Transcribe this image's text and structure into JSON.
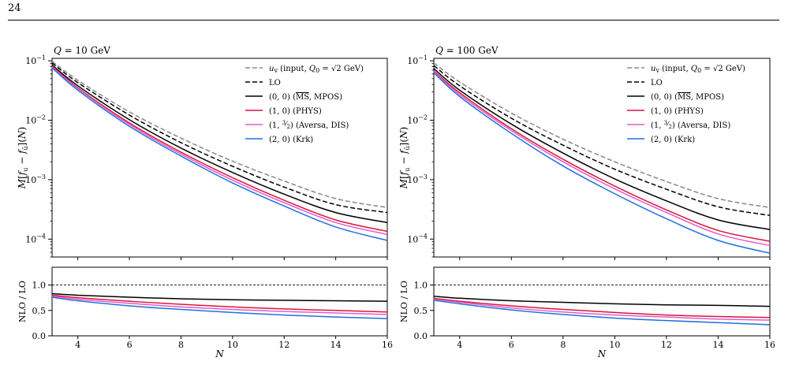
{
  "page": {
    "page_number": "24"
  },
  "legend_entries": [
    {
      "key": "uv",
      "label": "u_v (input, Q_0 = √2 GeV)",
      "color": "#888888",
      "dash": true
    },
    {
      "key": "LO",
      "label": "LO",
      "color": "#000000",
      "dash": true
    },
    {
      "key": "s00",
      "label": "(0, 0) (MS, MPOS)",
      "color": "#000000",
      "dash": false
    },
    {
      "key": "s10",
      "label": "(1, 0) (PHYS)",
      "color": "#dc143c",
      "dash": false
    },
    {
      "key": "s1h",
      "label": "(1, 3/2) (Aversa, DIS)",
      "color": "#e05ccc",
      "dash": false
    },
    {
      "key": "s20",
      "label": "(2, 0) (Krk)",
      "color": "#2070e0",
      "dash": false
    }
  ],
  "chart_data": [
    {
      "type": "line",
      "title": "Q = 10 GeV",
      "xlabel": "N",
      "ylabel": "M[f_u − f_ū](N)",
      "y_scale": "log",
      "xlim": [
        3,
        16
      ],
      "ylim": [
        5e-05,
        0.11
      ],
      "x": [
        3,
        4,
        6,
        8,
        10,
        12,
        14,
        16
      ],
      "x_ticks": [
        "4",
        "6",
        "8",
        "10",
        "12",
        "14",
        "16"
      ],
      "y_ticks": [
        "10^-1",
        "10^-2",
        "10^-3",
        "10^-4"
      ],
      "series": [
        {
          "name": "u_v (input, Q_0 = √2 GeV)",
          "values": [
            0.098,
            0.047,
            0.0138,
            0.005,
            0.00205,
            0.00095,
            0.00048,
            0.00034
          ]
        },
        {
          "name": "LO",
          "values": [
            0.092,
            0.043,
            0.0122,
            0.0042,
            0.00168,
            0.00075,
            0.00038,
            0.00028
          ]
        },
        {
          "name": "(0, 0) (MS, MPOS)",
          "values": [
            0.085,
            0.038,
            0.0102,
            0.0034,
            0.00132,
            0.00057,
            0.00028,
            0.00019
          ]
        },
        {
          "name": "(1, 0) (PHYS)",
          "values": [
            0.082,
            0.035,
            0.009,
            0.0029,
            0.00108,
            0.00045,
            0.00021,
            0.000135
          ]
        },
        {
          "name": "(1, 3/2) (Aversa, DIS)",
          "values": [
            0.079,
            0.034,
            0.0085,
            0.0027,
            0.00098,
            0.00041,
            0.00019,
            0.00012
          ]
        },
        {
          "name": "(2, 0) (Krk)",
          "values": [
            0.076,
            0.032,
            0.0079,
            0.0025,
            0.00088,
            0.00036,
            0.00016,
            9.5e-05
          ]
        }
      ],
      "ratio_panel": {
        "ylabel": "NLO / LO",
        "ylim": [
          0.0,
          1.35
        ],
        "y_ticks": [
          "0.0",
          "0.5",
          "1.0"
        ],
        "reference_line": 1.0,
        "x": [
          3,
          4,
          6,
          8,
          10,
          12,
          14,
          16
        ],
        "series": [
          {
            "name": "(0, 0) (MS, MPOS)",
            "values": [
              0.83,
              0.8,
              0.76,
              0.73,
              0.71,
              0.7,
              0.69,
              0.68
            ]
          },
          {
            "name": "(1, 0) (PHYS)",
            "values": [
              0.8,
              0.75,
              0.68,
              0.62,
              0.57,
              0.53,
              0.5,
              0.47
            ]
          },
          {
            "name": "(1, 3/2) (Aversa, DIS)",
            "values": [
              0.78,
              0.72,
              0.64,
              0.57,
              0.52,
              0.48,
              0.45,
              0.42
            ]
          },
          {
            "name": "(2, 0) (Krk)",
            "values": [
              0.76,
              0.69,
              0.59,
              0.52,
              0.46,
              0.41,
              0.37,
              0.34
            ]
          }
        ]
      }
    },
    {
      "type": "line",
      "title": "Q = 100 GeV",
      "xlabel": "N",
      "ylabel": "M[f_u − f_ū](N)",
      "y_scale": "log",
      "xlim": [
        3,
        16
      ],
      "ylim": [
        5e-05,
        0.11
      ],
      "x": [
        3,
        4,
        6,
        8,
        10,
        12,
        14,
        16
      ],
      "x_ticks": [
        "4",
        "6",
        "8",
        "10",
        "12",
        "14",
        "16"
      ],
      "y_ticks": [
        "10^-1",
        "10^-2",
        "10^-3",
        "10^-4"
      ],
      "series": [
        {
          "name": "u_v (input, Q_0 = √2 GeV)",
          "values": [
            0.092,
            0.044,
            0.0132,
            0.0048,
            0.002,
            0.00093,
            0.00048,
            0.00034
          ]
        },
        {
          "name": "LO",
          "values": [
            0.083,
            0.038,
            0.0108,
            0.0038,
            0.0015,
            0.00069,
            0.00035,
            0.00025
          ]
        },
        {
          "name": "(0, 0) (MS, MPOS)",
          "values": [
            0.074,
            0.032,
            0.0086,
            0.0028,
            0.00103,
            0.00044,
            0.00021,
            0.000145
          ]
        },
        {
          "name": "(1, 0) (PHYS)",
          "values": [
            0.068,
            0.029,
            0.0072,
            0.0022,
            0.00078,
            0.00031,
            0.00014,
            9.2e-05
          ]
        },
        {
          "name": "(1, 3/2) (Aversa, DIS)",
          "values": [
            0.066,
            0.027,
            0.0067,
            0.002,
            0.0007,
            0.00028,
            0.000122,
            7.8e-05
          ]
        },
        {
          "name": "(2, 0) (Krk)",
          "values": [
            0.063,
            0.025,
            0.006,
            0.0017,
            0.00058,
            0.00022,
            9.5e-05,
            5.8e-05
          ]
        }
      ],
      "ratio_panel": {
        "ylabel": "NLO / LO",
        "ylim": [
          0.0,
          1.35
        ],
        "y_ticks": [
          "0.0",
          "0.5",
          "1.0"
        ],
        "reference_line": 1.0,
        "x": [
          3,
          4,
          6,
          8,
          10,
          12,
          14,
          16
        ],
        "series": [
          {
            "name": "(0, 0) (MS, MPOS)",
            "values": [
              0.78,
              0.74,
              0.69,
              0.66,
              0.63,
              0.61,
              0.6,
              0.58
            ]
          },
          {
            "name": "(1, 0) (PHYS)",
            "values": [
              0.74,
              0.68,
              0.59,
              0.52,
              0.46,
              0.41,
              0.38,
              0.36
            ]
          },
          {
            "name": "(1, 3/2) (Aversa, DIS)",
            "values": [
              0.72,
              0.66,
              0.55,
              0.47,
              0.41,
              0.37,
              0.33,
              0.31
            ]
          },
          {
            "name": "(2, 0) (Krk)",
            "values": [
              0.7,
              0.63,
              0.51,
              0.42,
              0.35,
              0.3,
              0.26,
              0.22
            ]
          }
        ]
      }
    }
  ]
}
